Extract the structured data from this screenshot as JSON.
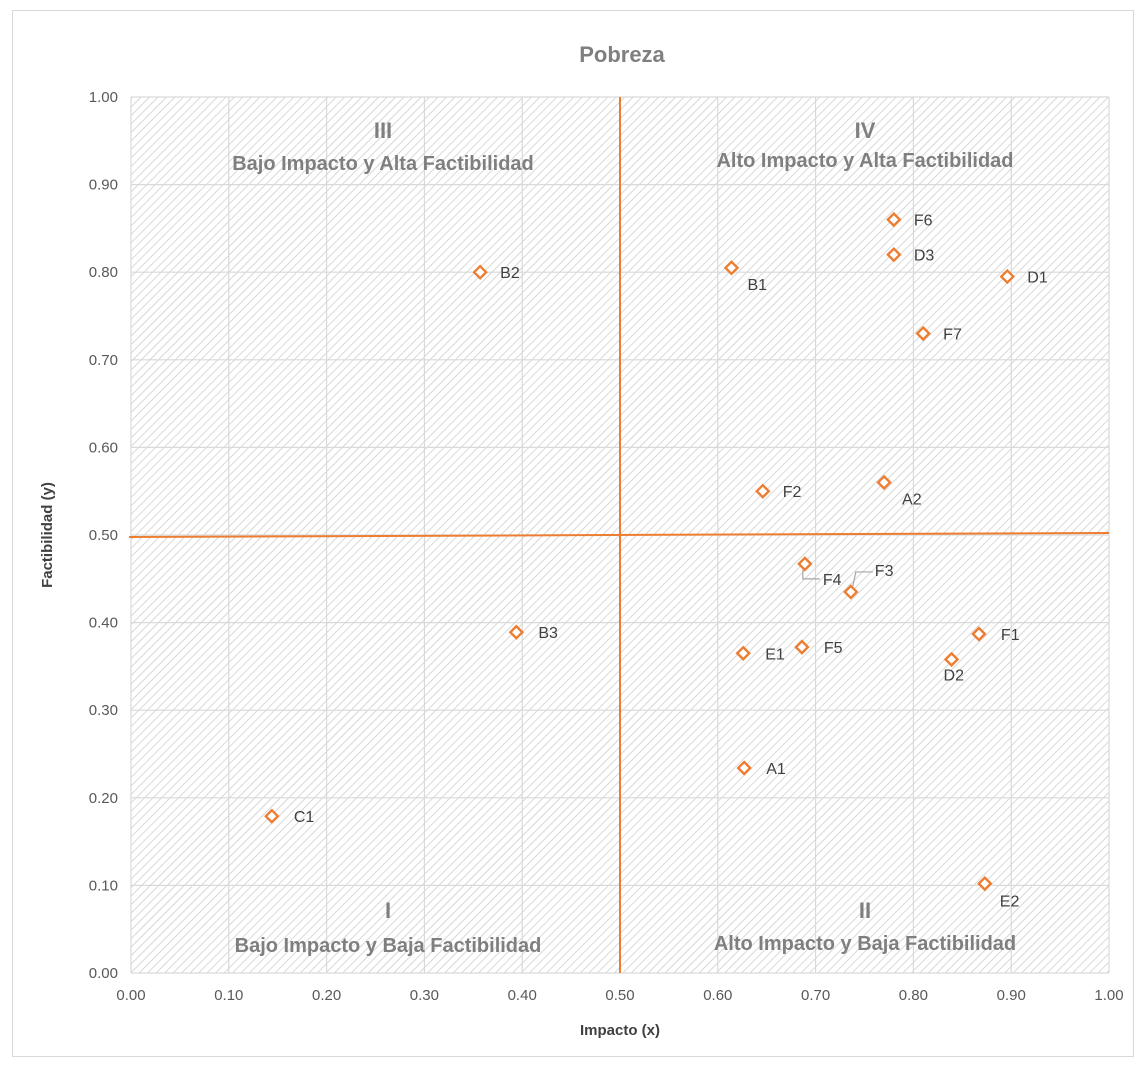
{
  "chart_data": {
    "type": "scatter",
    "title": "Pobreza",
    "xlabel": "Impacto (x)",
    "ylabel": "Factibilidad (y)",
    "xlim": [
      0,
      1
    ],
    "ylim": [
      0,
      1
    ],
    "x_ticks": [
      "0.00",
      "0.10",
      "0.20",
      "0.30",
      "0.40",
      "0.50",
      "0.60",
      "0.70",
      "0.80",
      "0.90",
      "1.00"
    ],
    "y_ticks": [
      "0.00",
      "0.10",
      "0.20",
      "0.30",
      "0.40",
      "0.50",
      "0.60",
      "0.70",
      "0.80",
      "0.90",
      "1.00"
    ],
    "grid": true,
    "marker": "diamond-open",
    "marker_color": "#ed7d31",
    "divider_color": "#ed7d31",
    "dividers": {
      "x": 0.5,
      "y": 0.5
    },
    "quadrants": [
      {
        "numeral": "III",
        "label": "Bajo Impacto y Alta Factibilidad"
      },
      {
        "numeral": "IV",
        "label": "Alto Impacto y Alta Factibilidad"
      },
      {
        "numeral": "I",
        "label": "Bajo Impacto y Baja Factibilidad"
      },
      {
        "numeral": "II",
        "label": "Alto Impacto y Baja Factibilidad"
      }
    ],
    "points": [
      {
        "label": "F6",
        "x": 0.78,
        "y": 0.86
      },
      {
        "label": "D3",
        "x": 0.78,
        "y": 0.82
      },
      {
        "label": "B2",
        "x": 0.357,
        "y": 0.8
      },
      {
        "label": "B1",
        "x": 0.614,
        "y": 0.805
      },
      {
        "label": "D1",
        "x": 0.896,
        "y": 0.795
      },
      {
        "label": "F7",
        "x": 0.81,
        "y": 0.73
      },
      {
        "label": "F2",
        "x": 0.646,
        "y": 0.55
      },
      {
        "label": "A2",
        "x": 0.77,
        "y": 0.56
      },
      {
        "label": "F4",
        "x": 0.689,
        "y": 0.467
      },
      {
        "label": "F3",
        "x": 0.736,
        "y": 0.435
      },
      {
        "label": "B3",
        "x": 0.394,
        "y": 0.389
      },
      {
        "label": "F1",
        "x": 0.867,
        "y": 0.387
      },
      {
        "label": "E1",
        "x": 0.626,
        "y": 0.365
      },
      {
        "label": "F5",
        "x": 0.686,
        "y": 0.372
      },
      {
        "label": "D2",
        "x": 0.839,
        "y": 0.358
      },
      {
        "label": "A1",
        "x": 0.627,
        "y": 0.234
      },
      {
        "label": "C1",
        "x": 0.144,
        "y": 0.179
      },
      {
        "label": "E2",
        "x": 0.873,
        "y": 0.102
      }
    ]
  }
}
